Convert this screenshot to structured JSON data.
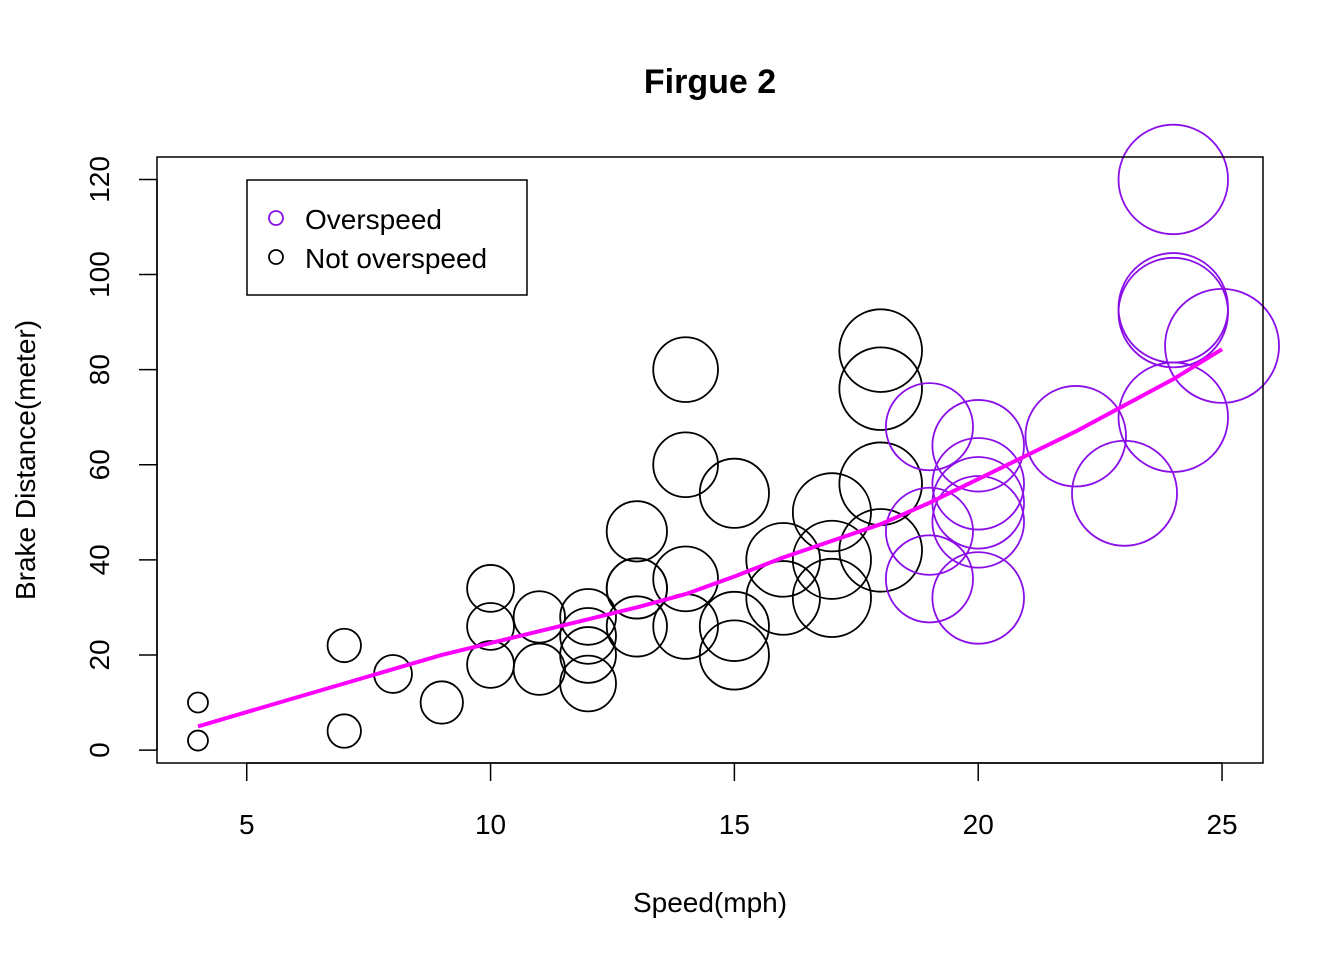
{
  "chart_data": {
    "type": "scatter",
    "title": "Firgue 2",
    "xlabel": "Speed(mph)",
    "ylabel": "Brake Distance(meter)",
    "xlim": [
      3.16,
      25.84
    ],
    "ylim": [
      -2.72,
      124.72
    ],
    "x_ticks": [
      5,
      10,
      15,
      20,
      25
    ],
    "y_ticks": [
      0,
      20,
      40,
      60,
      80,
      100,
      120
    ],
    "grid": false,
    "legend_position": "top-left",
    "legend": [
      {
        "label": "Overspeed",
        "color": "#8b0ee8"
      },
      {
        "label": "Not overspeed",
        "color": "#000000"
      }
    ],
    "colors": {
      "overspeed": "#8b0ee8",
      "not_overspeed": "#000000",
      "trend": "#ff00ff"
    },
    "point_size_encodes": "speed",
    "points": [
      {
        "x": 4,
        "y": 2,
        "group": "not_overspeed"
      },
      {
        "x": 4,
        "y": 10,
        "group": "not_overspeed"
      },
      {
        "x": 7,
        "y": 4,
        "group": "not_overspeed"
      },
      {
        "x": 7,
        "y": 22,
        "group": "not_overspeed"
      },
      {
        "x": 8,
        "y": 16,
        "group": "not_overspeed"
      },
      {
        "x": 9,
        "y": 10,
        "group": "not_overspeed"
      },
      {
        "x": 10,
        "y": 18,
        "group": "not_overspeed"
      },
      {
        "x": 10,
        "y": 26,
        "group": "not_overspeed"
      },
      {
        "x": 10,
        "y": 34,
        "group": "not_overspeed"
      },
      {
        "x": 11,
        "y": 17,
        "group": "not_overspeed"
      },
      {
        "x": 11,
        "y": 28,
        "group": "not_overspeed"
      },
      {
        "x": 12,
        "y": 14,
        "group": "not_overspeed"
      },
      {
        "x": 12,
        "y": 20,
        "group": "not_overspeed"
      },
      {
        "x": 12,
        "y": 24,
        "group": "not_overspeed"
      },
      {
        "x": 12,
        "y": 28,
        "group": "not_overspeed"
      },
      {
        "x": 13,
        "y": 26,
        "group": "not_overspeed"
      },
      {
        "x": 13,
        "y": 34,
        "group": "not_overspeed"
      },
      {
        "x": 13,
        "y": 34,
        "group": "not_overspeed"
      },
      {
        "x": 13,
        "y": 46,
        "group": "not_overspeed"
      },
      {
        "x": 14,
        "y": 26,
        "group": "not_overspeed"
      },
      {
        "x": 14,
        "y": 36,
        "group": "not_overspeed"
      },
      {
        "x": 14,
        "y": 60,
        "group": "not_overspeed"
      },
      {
        "x": 14,
        "y": 80,
        "group": "not_overspeed"
      },
      {
        "x": 15,
        "y": 20,
        "group": "not_overspeed"
      },
      {
        "x": 15,
        "y": 26,
        "group": "not_overspeed"
      },
      {
        "x": 15,
        "y": 54,
        "group": "not_overspeed"
      },
      {
        "x": 16,
        "y": 32,
        "group": "not_overspeed"
      },
      {
        "x": 16,
        "y": 40,
        "group": "not_overspeed"
      },
      {
        "x": 17,
        "y": 32,
        "group": "not_overspeed"
      },
      {
        "x": 17,
        "y": 40,
        "group": "not_overspeed"
      },
      {
        "x": 17,
        "y": 50,
        "group": "not_overspeed"
      },
      {
        "x": 18,
        "y": 42,
        "group": "not_overspeed"
      },
      {
        "x": 18,
        "y": 56,
        "group": "not_overspeed"
      },
      {
        "x": 18,
        "y": 76,
        "group": "not_overspeed"
      },
      {
        "x": 18,
        "y": 84,
        "group": "not_overspeed"
      },
      {
        "x": 19,
        "y": 36,
        "group": "overspeed"
      },
      {
        "x": 19,
        "y": 46,
        "group": "overspeed"
      },
      {
        "x": 19,
        "y": 68,
        "group": "overspeed"
      },
      {
        "x": 20,
        "y": 32,
        "group": "overspeed"
      },
      {
        "x": 20,
        "y": 48,
        "group": "overspeed"
      },
      {
        "x": 20,
        "y": 52,
        "group": "overspeed"
      },
      {
        "x": 20,
        "y": 56,
        "group": "overspeed"
      },
      {
        "x": 20,
        "y": 64,
        "group": "overspeed"
      },
      {
        "x": 22,
        "y": 66,
        "group": "overspeed"
      },
      {
        "x": 23,
        "y": 54,
        "group": "overspeed"
      },
      {
        "x": 24,
        "y": 70,
        "group": "overspeed"
      },
      {
        "x": 24,
        "y": 92,
        "group": "overspeed"
      },
      {
        "x": 24,
        "y": 93,
        "group": "overspeed"
      },
      {
        "x": 24,
        "y": 120,
        "group": "overspeed"
      },
      {
        "x": 25,
        "y": 85,
        "group": "overspeed"
      }
    ],
    "trend_line": {
      "x": [
        4,
        5,
        6,
        7,
        8,
        9,
        10,
        11,
        12,
        13,
        14,
        15,
        16,
        17,
        18,
        19,
        20,
        21,
        22,
        23,
        24,
        25
      ],
      "y": [
        4.97,
        8.0,
        11.0,
        14.0,
        17.0,
        20.0,
        22.5,
        25.0,
        27.5,
        30.0,
        32.8,
        36.5,
        40.5,
        44.0,
        47.5,
        52.0,
        57.0,
        62.0,
        67.0,
        72.5,
        78.0,
        84.3
      ]
    }
  }
}
